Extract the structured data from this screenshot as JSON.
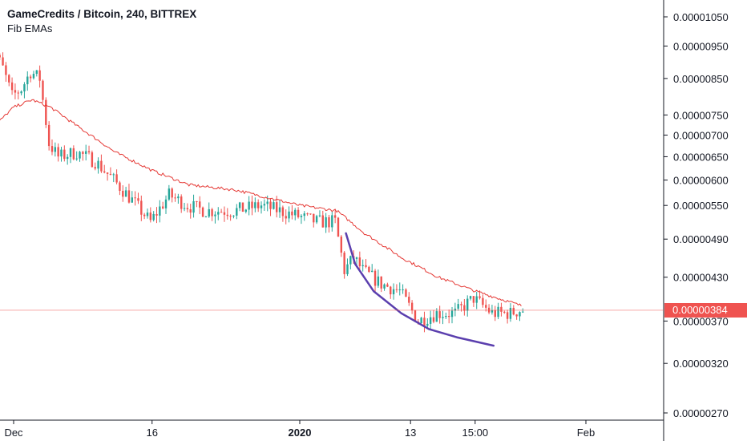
{
  "legend": {
    "title": "GameCredits / Bitcoin, 240, BITTREX",
    "indicator": "Fib EMAs"
  },
  "colors": {
    "up": "#26a69a",
    "down": "#ef5350",
    "ema": "#e53935",
    "curve": "#5b3fae",
    "price_line": "#ef5350",
    "price_tag": "#ef5350"
  },
  "chart_data": {
    "type": "candlestick",
    "title": "GameCredits / Bitcoin, 240, BITTREX",
    "indicator": "Fib EMAs",
    "y_scale": "log",
    "ylim": [
      2.6e-06,
      1.08e-05
    ],
    "y_ticks": [
      "0.00001050",
      "0.00000950",
      "0.00000850",
      "0.00000750",
      "0.00000700",
      "0.00000650",
      "0.00000600",
      "0.00000550",
      "0.00000490",
      "0.00000430",
      "0.00000370",
      "0.00000320",
      "0.00000270"
    ],
    "x_range": [
      "2019-11-28",
      "2020-02-11"
    ],
    "x_ticks": [
      {
        "date": "2019-12-01",
        "label": "Dec",
        "bold": false
      },
      {
        "date": "2019-12-16",
        "label": "16",
        "bold": false
      },
      {
        "date": "2020-01-01",
        "label": "2020",
        "bold": true
      },
      {
        "date": "2020-01-13",
        "label": "13",
        "bold": false
      },
      {
        "date": "2020-01-20",
        "label": "15:00",
        "bold": false
      },
      {
        "date": "2020-02-01",
        "label": "Feb",
        "bold": false
      }
    ],
    "last_price": "0.00000384",
    "price_anchors": [
      [
        "2019-11-28",
        9.8e-06
      ],
      [
        "2019-11-29",
        9.4e-06
      ],
      [
        "2019-11-30",
        8.8e-06
      ],
      [
        "2019-12-01",
        8e-06
      ],
      [
        "2019-12-02",
        8.2e-06
      ],
      [
        "2019-12-03",
        8.7e-06
      ],
      [
        "2019-12-04",
        8.5e-06
      ],
      [
        "2019-12-05",
        6.8e-06
      ],
      [
        "2019-12-06",
        6.5e-06
      ],
      [
        "2019-12-08",
        6.6e-06
      ],
      [
        "2019-12-10",
        6.4e-06
      ],
      [
        "2019-12-12",
        6e-06
      ],
      [
        "2019-12-14",
        5.6e-06
      ],
      [
        "2019-12-16",
        5.2e-06
      ],
      [
        "2019-12-18",
        5.7e-06
      ],
      [
        "2019-12-20",
        5.5e-06
      ],
      [
        "2019-12-22",
        5.4e-06
      ],
      [
        "2019-12-25",
        5.4e-06
      ],
      [
        "2019-12-28",
        5.5e-06
      ],
      [
        "2019-12-30",
        5.4e-06
      ],
      [
        "2020-01-01",
        5.3e-06
      ],
      [
        "2020-01-03",
        5.2e-06
      ],
      [
        "2020-01-05",
        5.2e-06
      ],
      [
        "2020-01-06",
        4.4e-06
      ],
      [
        "2020-01-07",
        4.6e-06
      ],
      [
        "2020-01-08",
        4.4e-06
      ],
      [
        "2020-01-10",
        4.2e-06
      ],
      [
        "2020-01-12",
        4.1e-06
      ],
      [
        "2020-01-14",
        3.7e-06
      ],
      [
        "2020-01-16",
        3.8e-06
      ],
      [
        "2020-01-18",
        3.8e-06
      ],
      [
        "2020-01-20",
        4e-06
      ],
      [
        "2020-01-22",
        3.8e-06
      ],
      [
        "2020-01-24",
        3.8e-06
      ],
      [
        "2020-01-25",
        3.84e-06
      ]
    ],
    "ema_points": [
      [
        "2019-11-28",
        7e-06
      ],
      [
        "2019-12-01",
        7.7e-06
      ],
      [
        "2019-12-03",
        7.9e-06
      ],
      [
        "2019-12-05",
        7.7e-06
      ],
      [
        "2019-12-08",
        7.2e-06
      ],
      [
        "2019-12-12",
        6.6e-06
      ],
      [
        "2019-12-16",
        6.2e-06
      ],
      [
        "2019-12-20",
        5.9e-06
      ],
      [
        "2019-12-25",
        5.8e-06
      ],
      [
        "2020-01-01",
        5.5e-06
      ],
      [
        "2020-01-05",
        5.4e-06
      ],
      [
        "2020-01-08",
        5e-06
      ],
      [
        "2020-01-12",
        4.6e-06
      ],
      [
        "2020-01-16",
        4.3e-06
      ],
      [
        "2020-01-20",
        4.1e-06
      ],
      [
        "2020-01-25",
        3.9e-06
      ]
    ],
    "curve_points": [
      [
        "2020-01-06",
        5e-06
      ],
      [
        "2020-01-07",
        4.5e-06
      ],
      [
        "2020-01-09",
        4.1e-06
      ],
      [
        "2020-01-12",
        3.8e-06
      ],
      [
        "2020-01-15",
        3.6e-06
      ],
      [
        "2020-01-18",
        3.5e-06
      ],
      [
        "2020-01-22",
        3.4e-06
      ]
    ],
    "candle_step_hours": 8
  }
}
